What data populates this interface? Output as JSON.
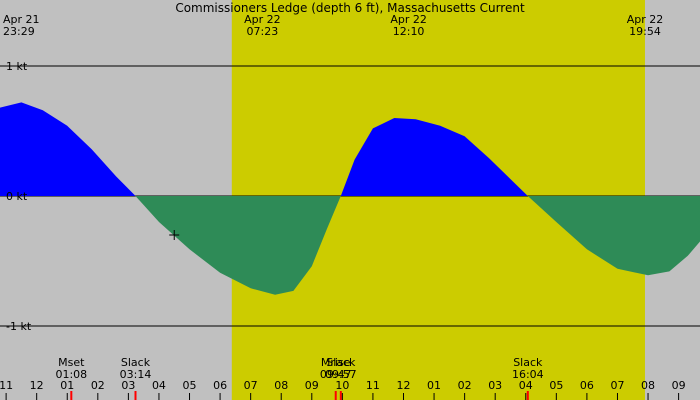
{
  "chart_data": {
    "type": "area",
    "title": "Commissioners Ledge (depth 6 ft), Massachusetts Current",
    "colors": {
      "background": "#c0c0c0",
      "daylight": "#cccc00",
      "flood": "#0000ff",
      "ebb": "#2e8b57",
      "event_mark": "#ff0000"
    },
    "x_range_hours": [
      -1.2,
      33.2
    ],
    "ylim": [
      -1.05,
      1.05
    ],
    "yticks": [
      {
        "label": "1 kt",
        "value": 1
      },
      {
        "label": "0 kt",
        "value": 0
      },
      {
        "label": "-1 kt",
        "value": -1
      }
    ],
    "daylight": {
      "start": 30.383,
      "end": 43.9
    },
    "header_labels": [
      {
        "date": "Apr 21",
        "time": "23:29",
        "hour": 23.483
      },
      {
        "date": "Apr 22",
        "time": "07:23",
        "hour": 31.383
      },
      {
        "date": "Apr 22",
        "time": "12:10",
        "hour": 36.167
      },
      {
        "date": "Apr 22",
        "time": "19:54",
        "hour": 43.9
      }
    ],
    "hour_ticks": [
      "11",
      "12",
      "01",
      "02",
      "03",
      "04",
      "05",
      "06",
      "07",
      "08",
      "09",
      "10",
      "11",
      "12",
      "01",
      "02",
      "03",
      "04",
      "05",
      "06",
      "07",
      "08",
      "09"
    ],
    "events": [
      {
        "name": "Mset",
        "time": "01:08",
        "hour": 25.133
      },
      {
        "name": "Slack",
        "time": "03:14",
        "hour": 27.233
      },
      {
        "name": "Mrise",
        "time": "09:47",
        "hour": 33.783
      },
      {
        "name": "Slack",
        "time": "09:57",
        "hour": 33.95
      },
      {
        "name": "Slack",
        "time": "16:04",
        "hour": 40.067
      }
    ],
    "current_points": [
      [
        22.8,
        0.68
      ],
      [
        23.5,
        0.72
      ],
      [
        24.2,
        0.66
      ],
      [
        25.0,
        0.54
      ],
      [
        25.8,
        0.36
      ],
      [
        26.6,
        0.15
      ],
      [
        27.233,
        0.0
      ],
      [
        28.0,
        -0.2
      ],
      [
        29.0,
        -0.41
      ],
      [
        30.0,
        -0.59
      ],
      [
        31.0,
        -0.71
      ],
      [
        31.8,
        -0.76
      ],
      [
        32.4,
        -0.73
      ],
      [
        33.0,
        -0.54
      ],
      [
        33.5,
        -0.25
      ],
      [
        33.95,
        0.0
      ],
      [
        34.4,
        0.28
      ],
      [
        35.0,
        0.52
      ],
      [
        35.7,
        0.6
      ],
      [
        36.4,
        0.59
      ],
      [
        37.2,
        0.54
      ],
      [
        38.0,
        0.46
      ],
      [
        38.8,
        0.29
      ],
      [
        39.5,
        0.13
      ],
      [
        40.067,
        0.0
      ],
      [
        41.0,
        -0.2
      ],
      [
        42.0,
        -0.41
      ],
      [
        43.0,
        -0.56
      ],
      [
        44.0,
        -0.61
      ],
      [
        44.7,
        -0.58
      ],
      [
        45.3,
        -0.46
      ],
      [
        45.7,
        -0.35
      ]
    ],
    "marker": {
      "hour": 28.5,
      "value": -0.3
    }
  }
}
